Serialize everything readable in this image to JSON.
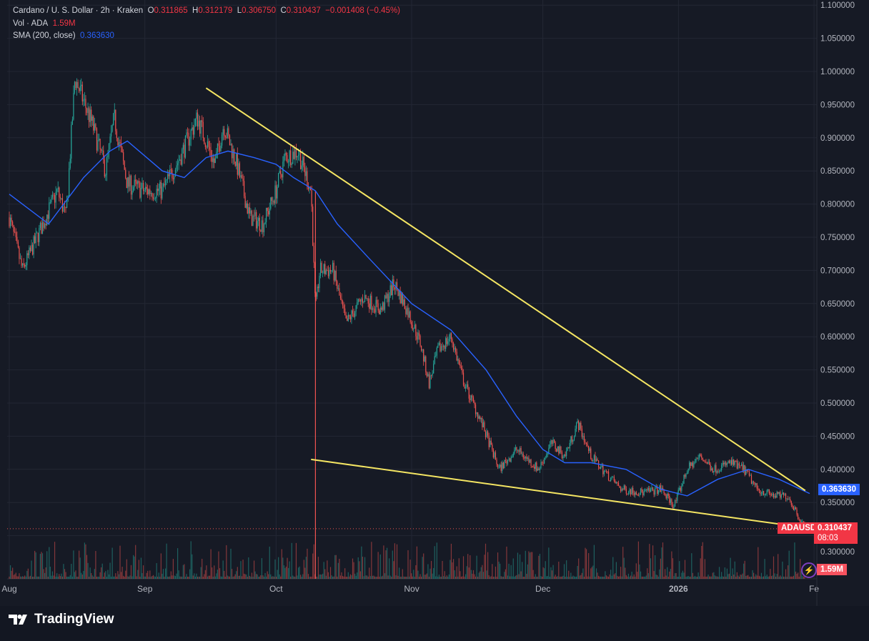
{
  "header": {
    "symbol": "Cardano / U. S. Dollar · 2h · Kraken",
    "o_label": "O",
    "o": "0.311865",
    "h_label": "H",
    "h": "0.312179",
    "l_label": "L",
    "l": "0.306750",
    "c_label": "C",
    "c": "0.310437",
    "change": "−0.001408 (−0.45%)",
    "vol_label": "Vol · ADA",
    "vol": "1.59M",
    "sma_label": "SMA (200, close)",
    "sma": "0.363630"
  },
  "tags": {
    "symbol": "ADAUSD",
    "price": "0.310437",
    "countdown": "08:03",
    "sma": "0.363630",
    "vol": "1.59M"
  },
  "brand": "TradingView",
  "colors": {
    "up": "#26a69a",
    "down": "#ef5350",
    "sma": "#2962ff",
    "trendline": "#f5e663",
    "bg": "#161a25"
  },
  "chart_data": {
    "type": "candlestick",
    "yticks": [
      "1.100000",
      "1.050000",
      "1.000000",
      "0.950000",
      "0.900000",
      "0.850000",
      "0.800000",
      "0.750000",
      "0.700000",
      "0.650000",
      "0.600000",
      "0.550000",
      "0.500000",
      "0.450000",
      "0.400000",
      "0.350000",
      "0.300000"
    ],
    "ylim": [
      0.29,
      1.1
    ],
    "xticks": [
      {
        "date": "2025-08-01",
        "label": "Aug"
      },
      {
        "date": "2025-09-01",
        "label": "Sep"
      },
      {
        "date": "2025-10-01",
        "label": "Oct"
      },
      {
        "date": "2025-11-01",
        "label": "Nov"
      },
      {
        "date": "2025-12-01",
        "label": "Dec"
      },
      {
        "date": "2026-01-01",
        "label": "2026"
      },
      {
        "date": "2026-02-01",
        "label": "Fe"
      }
    ],
    "price_path": [
      [
        "2025-08-01",
        0.78
      ],
      [
        "2025-08-04",
        0.7
      ],
      [
        "2025-08-08",
        0.76
      ],
      [
        "2025-08-12",
        0.82
      ],
      [
        "2025-08-14",
        0.78
      ],
      [
        "2025-08-16",
        0.99
      ],
      [
        "2025-08-20",
        0.92
      ],
      [
        "2025-08-23",
        0.85
      ],
      [
        "2025-08-25",
        0.93
      ],
      [
        "2025-08-28",
        0.83
      ],
      [
        "2025-09-01",
        0.82
      ],
      [
        "2025-09-05",
        0.82
      ],
      [
        "2025-09-09",
        0.87
      ],
      [
        "2025-09-13",
        0.93
      ],
      [
        "2025-09-17",
        0.86
      ],
      [
        "2025-09-19",
        0.92
      ],
      [
        "2025-09-22",
        0.86
      ],
      [
        "2025-09-25",
        0.78
      ],
      [
        "2025-09-28",
        0.77
      ],
      [
        "2025-10-01",
        0.82
      ],
      [
        "2025-10-03",
        0.87
      ],
      [
        "2025-10-06",
        0.88
      ],
      [
        "2025-10-09",
        0.82
      ],
      [
        "2025-10-10",
        0.64
      ],
      [
        "2025-10-11",
        0.7
      ],
      [
        "2025-10-14",
        0.7
      ],
      [
        "2025-10-17",
        0.62
      ],
      [
        "2025-10-21",
        0.66
      ],
      [
        "2025-10-25",
        0.64
      ],
      [
        "2025-10-28",
        0.68
      ],
      [
        "2025-10-31",
        0.64
      ],
      [
        "2025-11-03",
        0.59
      ],
      [
        "2025-11-05",
        0.53
      ],
      [
        "2025-11-07",
        0.58
      ],
      [
        "2025-11-10",
        0.6
      ],
      [
        "2025-11-13",
        0.53
      ],
      [
        "2025-11-17",
        0.47
      ],
      [
        "2025-11-21",
        0.4
      ],
      [
        "2025-11-25",
        0.43
      ],
      [
        "2025-11-30",
        0.4
      ],
      [
        "2025-12-03",
        0.44
      ],
      [
        "2025-12-06",
        0.42
      ],
      [
        "2025-12-09",
        0.47
      ],
      [
        "2025-12-12",
        0.42
      ],
      [
        "2025-12-16",
        0.39
      ],
      [
        "2025-12-19",
        0.37
      ],
      [
        "2025-12-24",
        0.365
      ],
      [
        "2025-12-28",
        0.37
      ],
      [
        "2025-12-31",
        0.345
      ],
      [
        "2026-01-03",
        0.4
      ],
      [
        "2026-01-06",
        0.42
      ],
      [
        "2026-01-09",
        0.4
      ],
      [
        "2026-01-13",
        0.41
      ],
      [
        "2026-01-16",
        0.4
      ],
      [
        "2026-01-19",
        0.37
      ],
      [
        "2026-01-23",
        0.36
      ],
      [
        "2026-01-26",
        0.36
      ],
      [
        "2026-01-30",
        0.31
      ]
    ],
    "sma_path": [
      [
        "2025-08-01",
        0.815
      ],
      [
        "2025-08-10",
        0.77
      ],
      [
        "2025-08-18",
        0.84
      ],
      [
        "2025-08-24",
        0.88
      ],
      [
        "2025-08-28",
        0.895
      ],
      [
        "2025-09-05",
        0.85
      ],
      [
        "2025-09-10",
        0.84
      ],
      [
        "2025-09-15",
        0.87
      ],
      [
        "2025-09-20",
        0.88
      ],
      [
        "2025-09-26",
        0.87
      ],
      [
        "2025-10-01",
        0.86
      ],
      [
        "2025-10-05",
        0.84
      ],
      [
        "2025-10-10",
        0.82
      ],
      [
        "2025-10-15",
        0.77
      ],
      [
        "2025-10-22",
        0.72
      ],
      [
        "2025-11-01",
        0.65
      ],
      [
        "2025-11-10",
        0.61
      ],
      [
        "2025-11-18",
        0.55
      ],
      [
        "2025-11-25",
        0.48
      ],
      [
        "2025-12-01",
        0.43
      ],
      [
        "2025-12-06",
        0.41
      ],
      [
        "2025-12-12",
        0.41
      ],
      [
        "2025-12-20",
        0.4
      ],
      [
        "2025-12-28",
        0.37
      ],
      [
        "2026-01-03",
        0.36
      ],
      [
        "2026-01-10",
        0.385
      ],
      [
        "2026-01-17",
        0.4
      ],
      [
        "2026-01-24",
        0.385
      ],
      [
        "2026-01-31",
        0.3636
      ]
    ],
    "trendlines": [
      {
        "from": [
          "2025-09-15",
          0.975
        ],
        "to": [
          "2026-01-30",
          0.368
        ]
      },
      {
        "from": [
          "2025-10-09",
          0.415
        ],
        "to": [
          "2026-01-29",
          0.313
        ]
      }
    ],
    "last_price": 0.310437
  }
}
